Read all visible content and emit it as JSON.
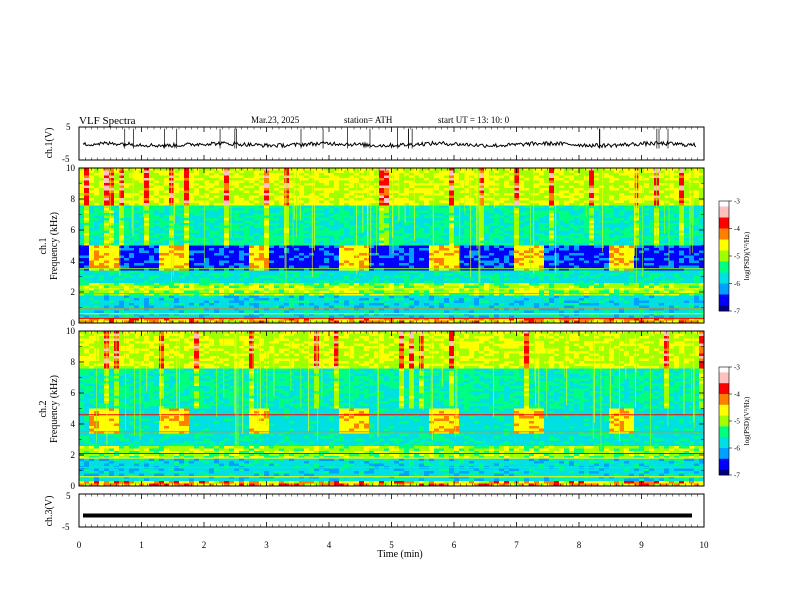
{
  "header": {
    "title": "VLF  Spectra",
    "date": "Mar.23, 2025",
    "station": "station= ATH",
    "start": "start  UT  =   13: 10: 0"
  },
  "colors": {
    "frame": "#000000",
    "waveform": "#000000",
    "colormap": [
      "#000080",
      "#0000ff",
      "#00a0ff",
      "#00e0e0",
      "#00ff80",
      "#a0ff00",
      "#ffff00",
      "#ff8000",
      "#ff0000",
      "#ffc0c0",
      "#ffffff"
    ]
  },
  "chart_data": [
    {
      "type": "line",
      "panel": "ch1-waveform",
      "ylabel": "ch.1(V)",
      "ylim": [
        -5,
        5
      ],
      "yticks": [
        "5",
        "-5"
      ],
      "xlim": [
        0,
        10
      ],
      "series": [
        {
          "values_description_free": true,
          "baseline": -0.3,
          "amplitude": 0.6
        }
      ]
    },
    {
      "type": "heatmap",
      "panel": "ch1-spectrogram",
      "ylabel": "ch.1\nFrequency  (kHz)",
      "ylabel_lines": [
        "ch.1",
        "Frequency  (kHz)"
      ],
      "ylim": [
        0,
        10
      ],
      "yticks": [
        "0",
        "2",
        "4",
        "6",
        "8",
        "10"
      ],
      "xlim": [
        0,
        10
      ],
      "transmitter_on_segments": [
        [
          0.15,
          0.6
        ],
        [
          1.25,
          1.75
        ],
        [
          2.7,
          3.0
        ],
        [
          4.15,
          4.65
        ],
        [
          5.6,
          6.1
        ],
        [
          7.0,
          7.45
        ],
        [
          8.45,
          8.9
        ]
      ],
      "colorbar": {
        "label": "log(PSD)(V²/Hz)",
        "ticks": [
          "-3",
          "-4",
          "-5",
          "-6",
          "-7"
        ],
        "range": [
          -7,
          -3
        ]
      }
    },
    {
      "type": "heatmap",
      "panel": "ch2-spectrogram",
      "ylabel": "ch.2\nFrequency  (kHz)",
      "ylabel_lines": [
        "ch.2",
        "Frequency  (kHz)"
      ],
      "ylim": [
        0,
        10
      ],
      "yticks": [
        "0",
        "2",
        "4",
        "6",
        "8",
        "10"
      ],
      "xlim": [
        0,
        10
      ],
      "transmitter_on_segments": [
        [
          0.15,
          0.6
        ],
        [
          1.25,
          1.75
        ],
        [
          2.7,
          3.0
        ],
        [
          4.15,
          4.65
        ],
        [
          5.6,
          6.1
        ],
        [
          7.0,
          7.45
        ],
        [
          8.45,
          8.9
        ]
      ],
      "colorbar": {
        "label": "log(PSD)(V²/Hz)",
        "ticks": [
          "-3",
          "-4",
          "-5",
          "-6",
          "-7"
        ],
        "range": [
          -7,
          -3
        ]
      }
    },
    {
      "type": "line",
      "panel": "ch3-waveform",
      "ylabel": "ch.3(V)",
      "ylim": [
        -5,
        5
      ],
      "yticks": [
        "5",
        "-5"
      ],
      "xlim": [
        0,
        10
      ],
      "xlabel": "Time  (min)",
      "xticks": [
        "0",
        "1",
        "2",
        "3",
        "4",
        "5",
        "6",
        "7",
        "8",
        "9",
        "10"
      ],
      "series": [
        {
          "baseline": -1.5,
          "amplitude": 0.15
        }
      ]
    }
  ]
}
